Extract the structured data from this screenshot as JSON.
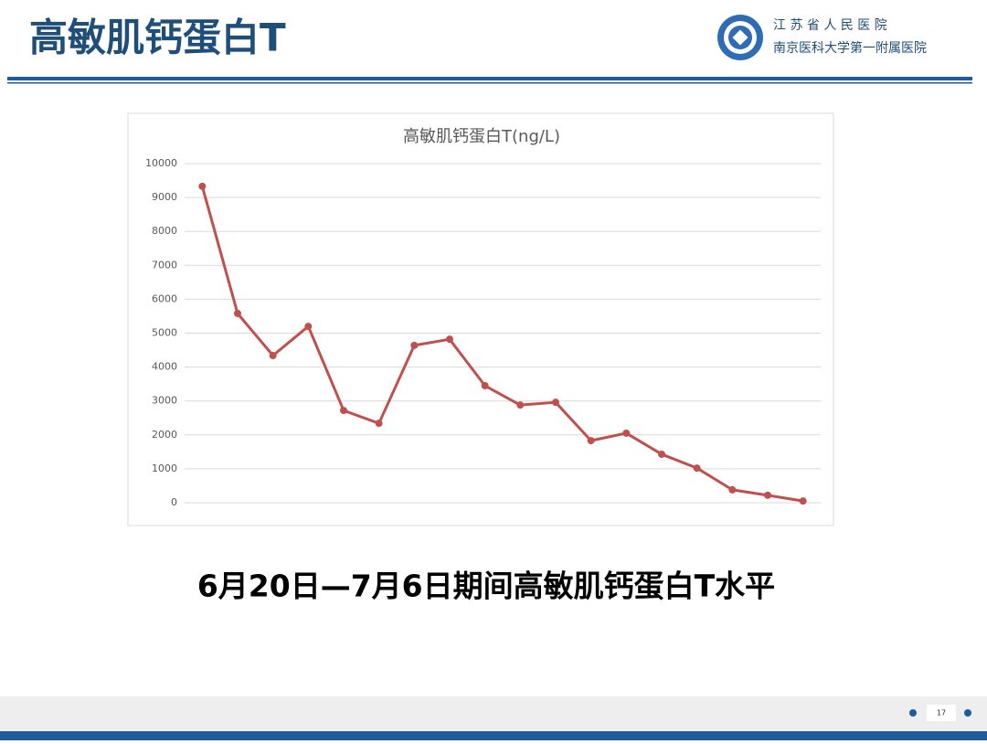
{
  "header": {
    "title": "高敏肌钙蛋白T",
    "org_name": "江 苏 省 人 民 医 院",
    "org_subtitle": "南京医科大学第一附属医院"
  },
  "chart_data": {
    "type": "line",
    "title": "高敏肌钙蛋白T(ng/L)",
    "categories": [
      null,
      null,
      null,
      null,
      null,
      null,
      null,
      null,
      null,
      null,
      null,
      null,
      null,
      null,
      null,
      null,
      null,
      null
    ],
    "series": [
      {
        "name": null,
        "color": "#c0504d",
        "values": [
          9330,
          5580,
          4340,
          5200,
          2720,
          2340,
          4640,
          4820,
          3450,
          2880,
          2960,
          1830,
          2050,
          1430,
          1020,
          380,
          220,
          50
        ]
      }
    ],
    "ylim": [
      0,
      10000
    ],
    "yticks": [
      0,
      1000,
      2000,
      3000,
      4000,
      5000,
      6000,
      7000,
      8000,
      9000,
      10000
    ],
    "grid": true
  },
  "caption": "6月20日—7月6日期间高敏肌钙蛋白T水平",
  "footer": {
    "page_number": "17"
  }
}
